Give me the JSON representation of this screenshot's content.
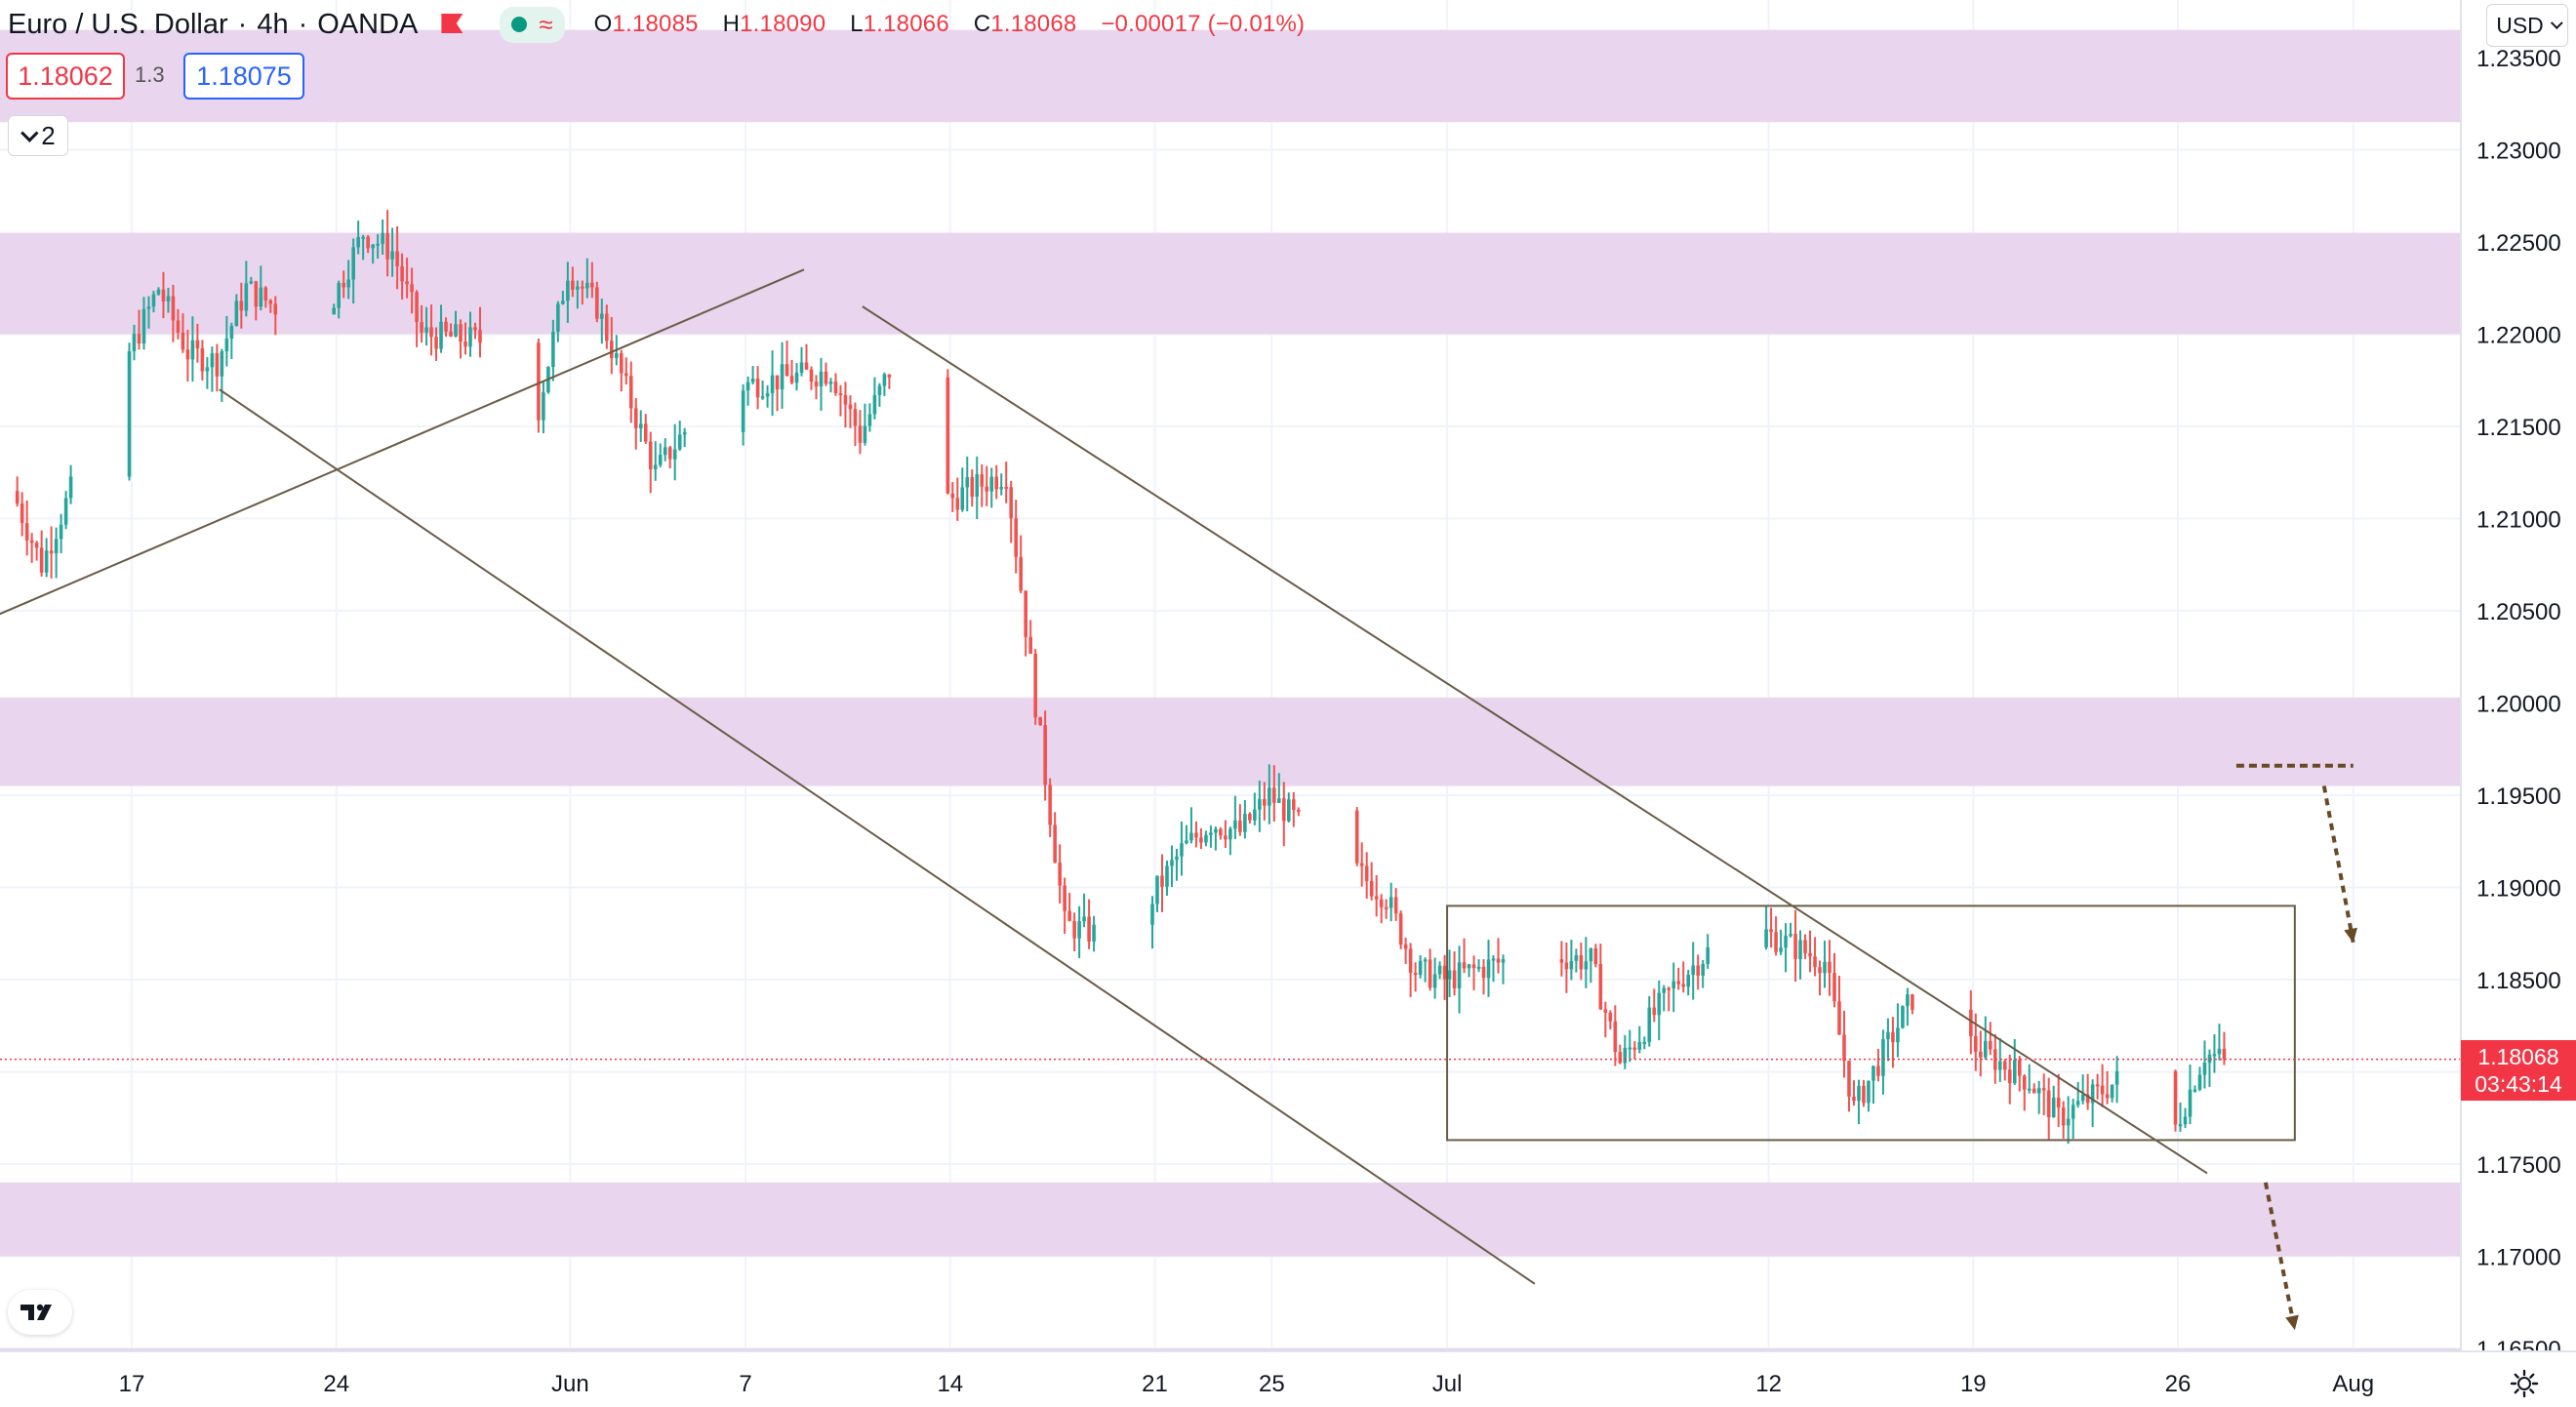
{
  "header": {
    "symbol": "Euro / U.S. Dollar",
    "interval": "4h",
    "source": "OANDA",
    "ohlc": {
      "o_label": "O",
      "o": "1.18085",
      "h_label": "H",
      "h": "1.18090",
      "l_label": "L",
      "l": "1.18066",
      "c_label": "C",
      "c": "1.18068",
      "change": "−0.00017 (−0.01%)"
    }
  },
  "quote": {
    "sell": "1.18062",
    "spread": "1.3",
    "buy": "1.18075"
  },
  "indicators_toggle": "2",
  "currency_button": "USD",
  "price_label": {
    "price": "1.18068",
    "countdown": "03:43:14"
  },
  "colors": {
    "up": "#26a69a",
    "down": "#ef5350",
    "zone": "#e9d5ee",
    "trendline": "#6b5b45",
    "arrow": "#6a4a26"
  },
  "chart_data": {
    "type": "candlestick",
    "ylim": [
      1.1645,
      1.2365
    ],
    "y_ticks": [
      1.235,
      1.23,
      1.225,
      1.22,
      1.215,
      1.21,
      1.205,
      1.2,
      1.195,
      1.19,
      1.185,
      1.18,
      1.175,
      1.17,
      1.165
    ],
    "y_tick_labels": [
      "1.23500",
      "1.23000",
      "1.22500",
      "1.22000",
      "1.21500",
      "1.21000",
      "1.20500",
      "1.20000",
      "1.19500",
      "1.19000",
      "1.18500",
      "1.18000",
      "1.17500",
      "1.17000",
      "1.16500"
    ],
    "x_ticks": [
      {
        "label": "17",
        "date": "2021-05-17"
      },
      {
        "label": "24",
        "date": "2021-05-24"
      },
      {
        "label": "Jun",
        "date": "2021-06-01"
      },
      {
        "label": "7",
        "date": "2021-06-07"
      },
      {
        "label": "14",
        "date": "2021-06-14"
      },
      {
        "label": "21",
        "date": "2021-06-21"
      },
      {
        "label": "25",
        "date": "2021-06-25"
      },
      {
        "label": "Jul",
        "date": "2021-07-01"
      },
      {
        "label": "12",
        "date": "2021-07-12"
      },
      {
        "label": "19",
        "date": "2021-07-19"
      },
      {
        "label": "26",
        "date": "2021-07-26"
      },
      {
        "label": "Aug",
        "date": "2021-08-01"
      }
    ],
    "path_keypoints": [
      {
        "date": "2021-05-13",
        "price": 1.2115
      },
      {
        "date": "2021-05-14",
        "price": 1.2075
      },
      {
        "date": "2021-05-16",
        "price": 1.2155
      },
      {
        "date": "2021-05-18",
        "price": 1.2225
      },
      {
        "date": "2021-05-19",
        "price": 1.219
      },
      {
        "date": "2021-05-20",
        "price": 1.2185
      },
      {
        "date": "2021-05-21",
        "price": 1.2225
      },
      {
        "date": "2021-05-23",
        "price": 1.2205
      },
      {
        "date": "2021-05-24",
        "price": 1.222
      },
      {
        "date": "2021-05-25",
        "price": 1.2255
      },
      {
        "date": "2021-05-26",
        "price": 1.2245
      },
      {
        "date": "2021-05-27",
        "price": 1.22
      },
      {
        "date": "2021-05-30",
        "price": 1.2195
      },
      {
        "date": "2021-05-31",
        "price": 1.216
      },
      {
        "date": "2021-06-01",
        "price": 1.2235
      },
      {
        "date": "2021-06-02",
        "price": 1.2215
      },
      {
        "date": "2021-06-04",
        "price": 1.2125
      },
      {
        "date": "2021-06-06",
        "price": 1.217
      },
      {
        "date": "2021-06-08",
        "price": 1.2175
      },
      {
        "date": "2021-06-10",
        "price": 1.218
      },
      {
        "date": "2021-06-11",
        "price": 1.2145
      },
      {
        "date": "2021-06-12",
        "price": 1.218
      },
      {
        "date": "2021-06-14",
        "price": 1.211
      },
      {
        "date": "2021-06-16",
        "price": 1.2125
      },
      {
        "date": "2021-06-17",
        "price": 1.2
      },
      {
        "date": "2021-06-18",
        "price": 1.188
      },
      {
        "date": "2021-06-20",
        "price": 1.187
      },
      {
        "date": "2021-06-22",
        "price": 1.192
      },
      {
        "date": "2021-06-23",
        "price": 1.1935
      },
      {
        "date": "2021-06-24",
        "price": 1.193
      },
      {
        "date": "2021-06-25",
        "price": 1.195
      },
      {
        "date": "2021-06-26",
        "price": 1.1935
      },
      {
        "date": "2021-06-29",
        "price": 1.1895
      },
      {
        "date": "2021-06-30",
        "price": 1.1855
      },
      {
        "date": "2021-07-01",
        "price": 1.185
      },
      {
        "date": "2021-07-04",
        "price": 1.1865
      },
      {
        "date": "2021-07-06",
        "price": 1.186
      },
      {
        "date": "2021-07-07",
        "price": 1.1805
      },
      {
        "date": "2021-07-09",
        "price": 1.185
      },
      {
        "date": "2021-07-10",
        "price": 1.1865
      },
      {
        "date": "2021-07-12",
        "price": 1.1875
      },
      {
        "date": "2021-07-14",
        "price": 1.186
      },
      {
        "date": "2021-07-15",
        "price": 1.178
      },
      {
        "date": "2021-07-17",
        "price": 1.184
      },
      {
        "date": "2021-07-19",
        "price": 1.1815
      },
      {
        "date": "2021-07-21",
        "price": 1.1795
      },
      {
        "date": "2021-07-22",
        "price": 1.1775
      },
      {
        "date": "2021-07-24",
        "price": 1.1795
      },
      {
        "date": "2021-07-25",
        "price": 1.1775
      },
      {
        "date": "2021-07-26",
        "price": 1.177
      },
      {
        "date": "2021-07-27",
        "price": 1.181
      },
      {
        "date": "2021-07-27T14:00",
        "price": 1.18068
      }
    ],
    "zones": [
      {
        "from": 1.2315,
        "to": 1.2365
      },
      {
        "from": 1.22,
        "to": 1.2255
      },
      {
        "from": 1.1955,
        "to": 1.2003
      },
      {
        "from": 1.17,
        "to": 1.174
      },
      {
        "from": 1.1645,
        "to": 1.165
      }
    ],
    "trendlines": [
      {
        "from": {
          "date": "2021-05-12",
          "price": 1.2045
        },
        "to": {
          "date": "2021-06-09",
          "price": 1.2235
        }
      },
      {
        "from": {
          "date": "2021-05-20",
          "price": 1.217
        },
        "to": {
          "date": "2021-07-04",
          "price": 1.1685
        }
      },
      {
        "from": {
          "date": "2021-06-11",
          "price": 1.2215
        },
        "to": {
          "date": "2021-07-27",
          "price": 1.1745
        }
      }
    ],
    "range_box": {
      "from_date": "2021-07-01",
      "to_date": "2021-07-30",
      "top": 1.189,
      "bottom": 1.1763
    },
    "dashed_level": {
      "price": 1.1966,
      "from_date": "2021-07-28",
      "to_date": "2021-08-01"
    },
    "arrows": [
      {
        "from": {
          "date": "2021-07-31",
          "price": 1.1955
        },
        "to": {
          "date": "2021-08-01",
          "price": 1.187
        }
      },
      {
        "from": {
          "date": "2021-07-29",
          "price": 1.174
        },
        "to": {
          "date": "2021-07-30",
          "price": 1.166
        }
      }
    ],
    "last_price": 1.18068
  }
}
